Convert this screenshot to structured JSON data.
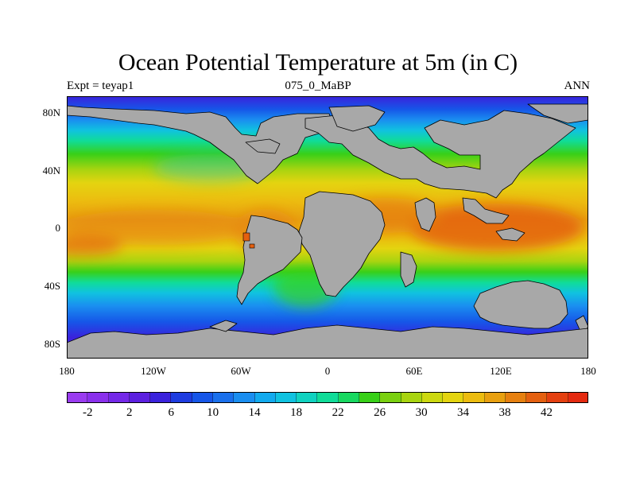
{
  "title": "Ocean Potential Temperature at 5m (in C)",
  "subtitle_left": "Expt = teyap1",
  "subtitle_center": "075_0_MaBP",
  "subtitle_right": "ANN",
  "lat_axis": {
    "labels": [
      {
        "text": "80N",
        "lat": 80
      },
      {
        "text": "40N",
        "lat": 40
      },
      {
        "text": "0",
        "lat": 0
      },
      {
        "text": "40S",
        "lat": -40
      },
      {
        "text": "80S",
        "lat": -80
      }
    ]
  },
  "lon_axis": {
    "labels": [
      {
        "text": "180",
        "lon": -180
      },
      {
        "text": "120W",
        "lon": -120
      },
      {
        "text": "60W",
        "lon": -60
      },
      {
        "text": "0",
        "lon": 0
      },
      {
        "text": "60E",
        "lon": 60
      },
      {
        "text": "120E",
        "lon": 120
      },
      {
        "text": "180",
        "lon": 180
      }
    ]
  },
  "colors": {
    "land": "#a8a8a8",
    "bar_colors": [
      "#9a3cf0",
      "#8a30ec",
      "#7428e8",
      "#5c20e0",
      "#3a22dc",
      "#1e3ce0",
      "#1656e8",
      "#1a70ec",
      "#1a8ef0",
      "#12aaee",
      "#10c2e0",
      "#10d2c0",
      "#10dc98",
      "#18d860",
      "#38d018",
      "#7ad010",
      "#a8d410",
      "#ccd810",
      "#e4d410",
      "#ecbc10",
      "#e8a010",
      "#e68010",
      "#e46010",
      "#e44010",
      "#e42a10"
    ]
  },
  "colorbar": {
    "labels": [
      "-2",
      "2",
      "6",
      "10",
      "14",
      "18",
      "22",
      "26",
      "30",
      "34",
      "38",
      "42"
    ]
  }
}
